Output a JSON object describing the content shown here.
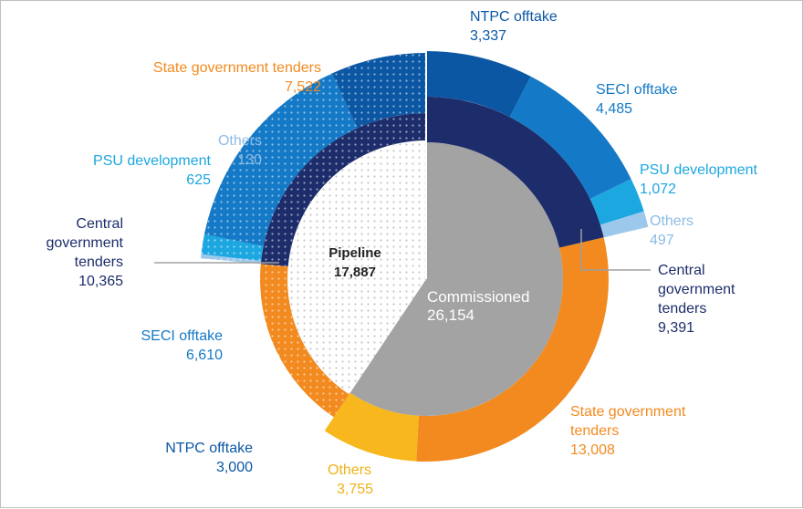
{
  "chart_data": {
    "type": "nested-donut",
    "center": {
      "pipeline_label": "Pipeline",
      "pipeline_value": "17,887",
      "commissioned_label": "Commissioned",
      "commissioned_value": "26,154"
    },
    "commissioned": {
      "total": 26154,
      "segments": [
        {
          "name": "Central government tenders",
          "value": 9391,
          "value_label": "9,391",
          "color": "#1d2d6b"
        },
        {
          "name": "State government tenders",
          "value": 13008,
          "value_label": "13,008",
          "color": "#f28a1f"
        },
        {
          "name": "Others",
          "value": 3755,
          "value_label": "3,755",
          "color": "#f7b71d"
        }
      ],
      "offtake": [
        {
          "name": "NTPC offtake",
          "value": 3337,
          "value_label": "3,337",
          "color": "#0b57a4"
        },
        {
          "name": "SECI offtake",
          "value": 4485,
          "value_label": "4,485",
          "color": "#1479c6"
        },
        {
          "name": "PSU development",
          "value": 1072,
          "value_label": "1,072",
          "color": "#1ca7e0"
        },
        {
          "name": "Others",
          "value": 497,
          "value_label": "497",
          "color": "#9cc8ec"
        }
      ]
    },
    "pipeline": {
      "total": 17887,
      "segments": [
        {
          "name": "State government tenders",
          "value": 7522,
          "value_label": "7,522",
          "color": "#f28a1f"
        },
        {
          "name": "Central government tenders",
          "value": 10365,
          "value_label": "10,365",
          "color": "#1d2d6b"
        }
      ],
      "offtake": [
        {
          "name": "Others",
          "value": 130,
          "value_label": "130",
          "color": "#9cc8ec"
        },
        {
          "name": "PSU development",
          "value": 625,
          "value_label": "625",
          "color": "#1ca7e0"
        },
        {
          "name": "SECI offtake",
          "value": 6610,
          "value_label": "6,610",
          "color": "#1479c6"
        },
        {
          "name": "NTPC offtake",
          "value": 3000,
          "value_label": "3,000",
          "color": "#0b57a4"
        }
      ]
    }
  },
  "labels": {
    "ntpc_c": {
      "name": "NTPC offtake",
      "value": "3,337"
    },
    "seci_c": {
      "name": "SECI offtake",
      "value": "4,485"
    },
    "psu_c": {
      "name": "PSU development",
      "value": "1,072"
    },
    "others_c": {
      "name": "Others",
      "value": "497"
    },
    "central_c": {
      "l1": "Central",
      "l2": "government",
      "l3": "tenders",
      "value": "9,391"
    },
    "state_c": {
      "l1": "State government",
      "l2": "tenders",
      "value": "13,008"
    },
    "othersy_c": {
      "name": "Others",
      "value": "3,755"
    },
    "state_p": {
      "name": "State government tenders",
      "value": "7,522"
    },
    "others_p": {
      "name": "Others",
      "value": "130"
    },
    "psu_p": {
      "name": "PSU development",
      "value": "625"
    },
    "central_p": {
      "l1": "Central",
      "l2": "government",
      "l3": "tenders",
      "value": "10,365"
    },
    "seci_p": {
      "name": "SECI offtake",
      "value": "6,610"
    },
    "ntpc_p": {
      "name": "NTPC offtake",
      "value": "3,000"
    }
  },
  "colors": {
    "commissioned_core": "#a3a3a3",
    "pipeline_core": "#ffffff",
    "leader_line": "#a0a0a0",
    "text_dark": "#1d2d6b",
    "text_blue": "#0b57a4",
    "text_lightblue": "#1479c6",
    "text_cyan": "#1ca7e0",
    "text_pale": "#8cbbe6",
    "text_orange": "#f28a1f",
    "text_yellow": "#f0b21a"
  }
}
